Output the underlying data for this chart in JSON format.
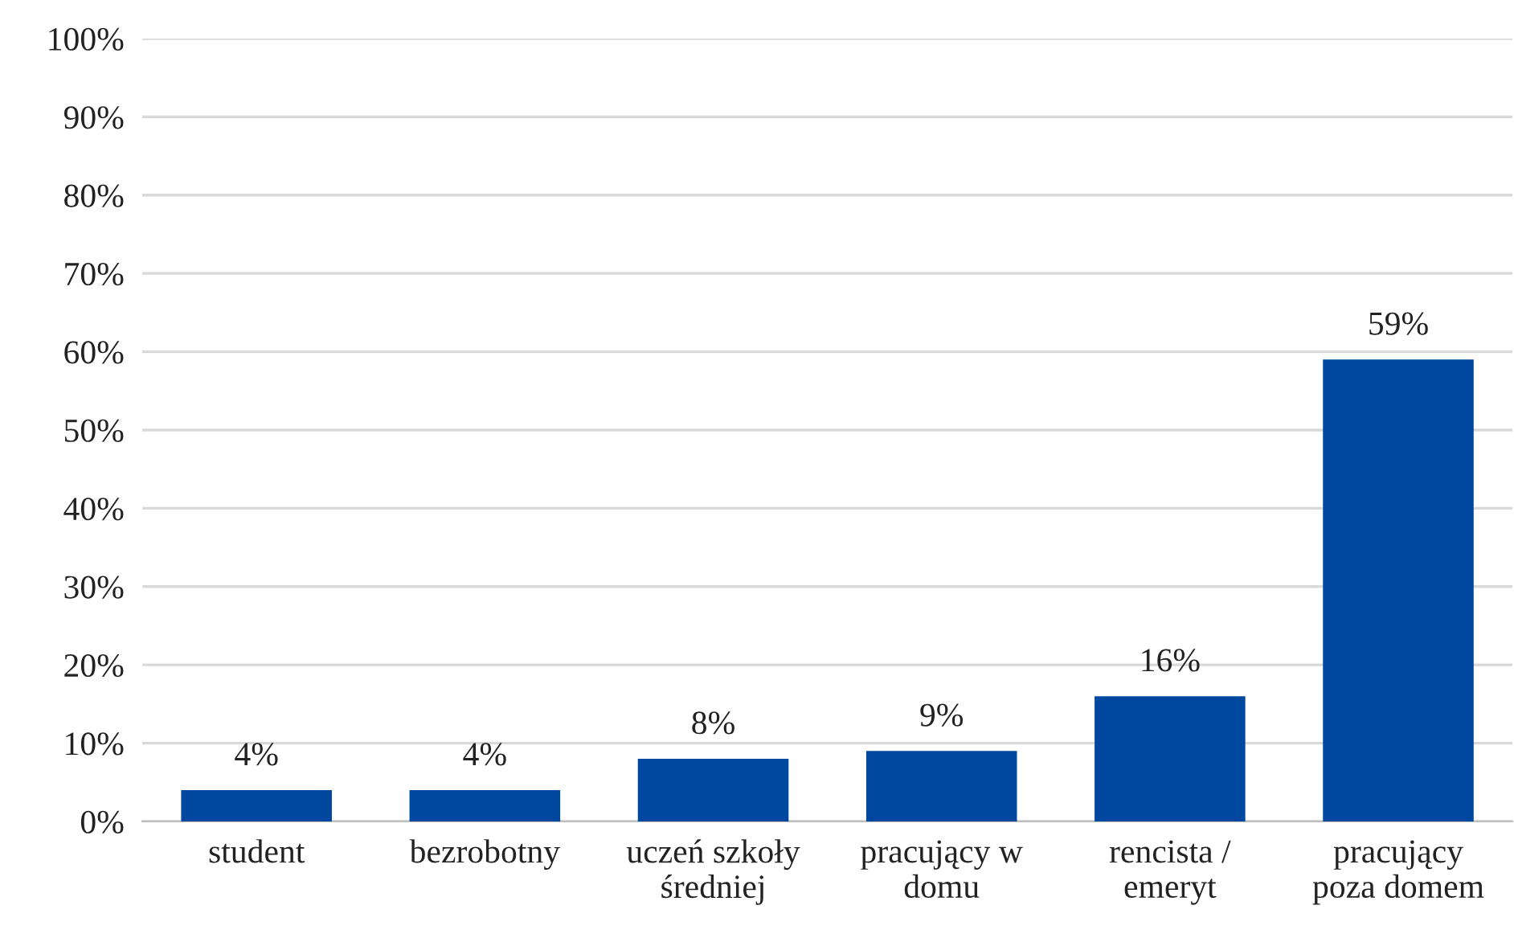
{
  "chart_data": {
    "type": "bar",
    "categories": [
      "student",
      "bezrobotny",
      "uczeń szkoły\nśredniej",
      "pracujący w\ndomu",
      "rencista /\nemeryt",
      "pracujący\npoza domem"
    ],
    "values": [
      4,
      4,
      8,
      9,
      16,
      59
    ],
    "value_labels": [
      "4%",
      "4%",
      "8%",
      "9%",
      "16%",
      "59%"
    ],
    "color": "#0047a0",
    "ylim": [
      0,
      100
    ],
    "yticks": [
      {
        "value": 0,
        "label": "0%"
      },
      {
        "value": 10,
        "label": "10%"
      },
      {
        "value": 20,
        "label": "20%"
      },
      {
        "value": 30,
        "label": "30%"
      },
      {
        "value": 40,
        "label": "40%"
      },
      {
        "value": 50,
        "label": "50%"
      },
      {
        "value": 60,
        "label": "60%"
      },
      {
        "value": 70,
        "label": "70%"
      },
      {
        "value": 80,
        "label": "80%"
      },
      {
        "value": 90,
        "label": "90%"
      },
      {
        "value": 100,
        "label": "100%"
      }
    ],
    "grid": "y",
    "legend": false
  }
}
